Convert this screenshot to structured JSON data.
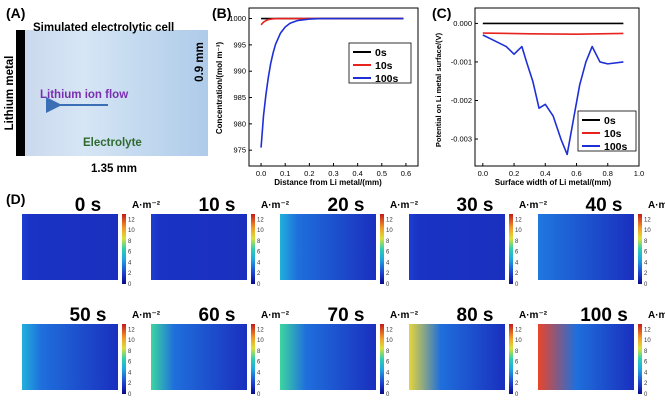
{
  "panel_a": {
    "label": "(A)",
    "title": "Simulated electrolytic cell",
    "left_label": "Lithium metal",
    "flow_label": "Lithium ion flow",
    "electrolyte_label": "Electrolyte",
    "height_label": "0.9 mm",
    "width_label": "1.35 mm",
    "colors": {
      "flow_text": "#7a2fb0",
      "arrow": "#3a6fb6",
      "electrolyte_text": "#2f6b2f"
    }
  },
  "panel_d": {
    "label": "(D)",
    "unit": "A·m⁻²",
    "colorbar_ticks": [
      "12",
      "10",
      "8",
      "6",
      "4",
      "2",
      "0"
    ],
    "maps": [
      {
        "time": "0 s",
        "edge_intensity": 0.0
      },
      {
        "time": "10 s",
        "edge_intensity": 0.02
      },
      {
        "time": "20 s",
        "edge_intensity": 0.3
      },
      {
        "time": "30 s",
        "edge_intensity": 0.06
      },
      {
        "time": "40 s",
        "edge_intensity": 0.1
      },
      {
        "time": "50 s",
        "edge_intensity": 0.35
      },
      {
        "time": "60 s",
        "edge_intensity": 0.45
      },
      {
        "time": "70 s",
        "edge_intensity": 0.55
      },
      {
        "time": "80 s",
        "edge_intensity": 0.72
      },
      {
        "time": "100 s",
        "edge_intensity": 0.9
      }
    ]
  },
  "chart_data": [
    {
      "panel_label": "(B)",
      "type": "line",
      "xlabel": "Distance from Li metal/(mm)",
      "ylabel": "Concentration/(mol m⁻³)",
      "xlim": [
        -0.05,
        0.65
      ],
      "ylim": [
        972,
        1002
      ],
      "xticks": [
        "0.0",
        "0.1",
        "0.2",
        "0.3",
        "0.4",
        "0.5",
        "0.6"
      ],
      "yticks": [
        "975",
        "980",
        "985",
        "990",
        "995",
        "1000"
      ],
      "legend_position": "right",
      "series": [
        {
          "name": "0s",
          "color": "#000000",
          "x": [
            0.0,
            0.59
          ],
          "y": [
            1000,
            1000
          ]
        },
        {
          "name": "10s",
          "color": "#e8231f",
          "x": [
            0.0,
            0.01,
            0.02,
            0.03,
            0.05,
            0.08,
            0.12,
            0.59
          ],
          "y": [
            998.8,
            999.3,
            999.6,
            999.8,
            999.95,
            1000,
            1000,
            1000
          ]
        },
        {
          "name": "100s",
          "color": "#1f2fd6",
          "x": [
            0.0,
            0.01,
            0.02,
            0.03,
            0.04,
            0.05,
            0.06,
            0.08,
            0.1,
            0.12,
            0.15,
            0.2,
            0.25,
            0.3,
            0.59
          ],
          "y": [
            975.5,
            981.5,
            985.5,
            988.8,
            991.5,
            993.5,
            995.1,
            997.2,
            998.4,
            999.1,
            999.6,
            999.9,
            1000,
            1000,
            1000
          ]
        }
      ]
    },
    {
      "panel_label": "(C)",
      "type": "line",
      "xlabel": "Surface width of Li metal/(mm)",
      "ylabel": "Potential on Li metal surface/(V)",
      "xlim": [
        -0.05,
        1.0
      ],
      "ylim": [
        -0.0037,
        0.0004
      ],
      "xticks": [
        "0.0",
        "0.2",
        "0.4",
        "0.6",
        "0.8",
        "1.0"
      ],
      "yticks": [
        "0.000",
        "-0.001",
        "-0.002",
        "-0.003"
      ],
      "legend_position": "bottom-right",
      "series": [
        {
          "name": "0s",
          "color": "#000000",
          "x": [
            0.0,
            0.9
          ],
          "y": [
            0.0,
            0.0
          ]
        },
        {
          "name": "10s",
          "color": "#e8231f",
          "x": [
            0.0,
            0.3,
            0.6,
            0.9
          ],
          "y": [
            -0.00025,
            -0.00027,
            -0.00028,
            -0.00026
          ]
        },
        {
          "name": "100s",
          "color": "#1f2fd6",
          "x": [
            0.0,
            0.05,
            0.1,
            0.15,
            0.2,
            0.25,
            0.28,
            0.32,
            0.36,
            0.4,
            0.45,
            0.5,
            0.54,
            0.58,
            0.62,
            0.66,
            0.7,
            0.75,
            0.8,
            0.9
          ],
          "y": [
            -0.0003,
            -0.0004,
            -0.0005,
            -0.0006,
            -0.0008,
            -0.0006,
            -0.001,
            -0.0015,
            -0.0022,
            -0.0021,
            -0.0024,
            -0.003,
            -0.0034,
            -0.0025,
            -0.0016,
            -0.001,
            -0.0006,
            -0.001,
            -0.00105,
            -0.001
          ]
        }
      ]
    }
  ]
}
